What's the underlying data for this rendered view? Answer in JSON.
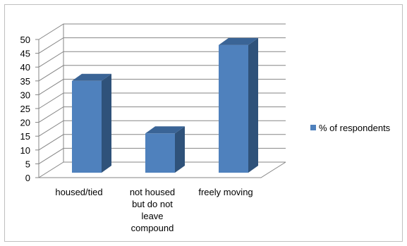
{
  "chart_data": {
    "type": "bar",
    "title": "",
    "xlabel": "",
    "ylabel": "",
    "categories": [
      [
        "housed/tied"
      ],
      [
        "not housed",
        "but do not",
        "leave",
        "compound"
      ],
      [
        "freely moving"
      ]
    ],
    "series": [
      {
        "name": "% of respondents",
        "values": [
          35,
          16,
          48
        ],
        "color": "#4f81bd"
      }
    ],
    "ylim": [
      0,
      50
    ],
    "yticks": [
      0,
      5,
      10,
      15,
      20,
      25,
      30,
      35,
      40,
      45,
      50
    ],
    "grid": true,
    "bar_style": "3d",
    "legend": "right"
  }
}
